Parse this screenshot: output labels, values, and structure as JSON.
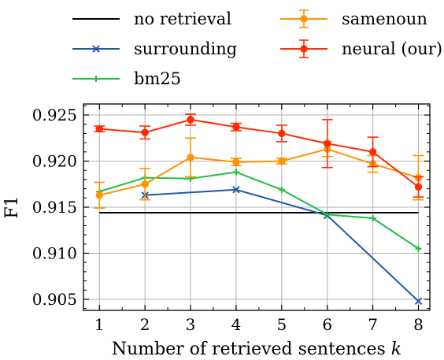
{
  "chart_data": {
    "type": "line",
    "xlabel": "Number of retrieved sentences",
    "xlabel_var": "k",
    "ylabel": "F1",
    "x": [
      1,
      2,
      3,
      4,
      5,
      6,
      7,
      8
    ],
    "x_ticks": [
      "1",
      "2",
      "3",
      "4",
      "5",
      "6",
      "7",
      "8"
    ],
    "y_ticks": [
      "0.905",
      "0.910",
      "0.915",
      "0.920",
      "0.925"
    ],
    "xlim": [
      0.65,
      8.25
    ],
    "ylim": [
      0.9038,
      0.9262
    ],
    "grid": true,
    "legend_position": "top (above plot, two columns)",
    "series": [
      {
        "name": "no retrieval",
        "color": "#000000",
        "marker": "none",
        "x": [
          1,
          8
        ],
        "values": [
          0.9144,
          0.9144
        ]
      },
      {
        "name": "surrounding",
        "color": "#1f5aa6",
        "marker": "x",
        "x": [
          2,
          4,
          6,
          8
        ],
        "values": [
          0.9163,
          0.9169,
          0.9141,
          0.9048
        ]
      },
      {
        "name": "bm25",
        "color": "#1fbf3c",
        "marker": "plus",
        "x": [
          1,
          2,
          3,
          4,
          5,
          6,
          7,
          8
        ],
        "values": [
          0.9167,
          0.9182,
          0.9181,
          0.9188,
          0.9169,
          0.9142,
          0.9138,
          0.9105
        ]
      },
      {
        "name": "samenoun",
        "color": "#ff9500",
        "marker": "circle",
        "x": [
          1,
          2,
          3,
          4,
          5,
          6,
          7,
          8
        ],
        "values": [
          0.9163,
          0.9175,
          0.9204,
          0.9199,
          0.92,
          0.9213,
          0.9197,
          0.9182
        ],
        "errors": [
          0.0014,
          0.0017,
          0.0021,
          0.0004,
          0.0003,
          0.0008,
          0.0009,
          0.0024
        ]
      },
      {
        "name": "neural (our)",
        "color": "#ff2c00",
        "marker": "circle",
        "x": [
          1,
          2,
          3,
          4,
          5,
          6,
          7,
          8
        ],
        "values": [
          0.9235,
          0.9231,
          0.9245,
          0.9237,
          0.923,
          0.9219,
          0.921,
          0.9172
        ],
        "errors": [
          0.0003,
          0.0007,
          0.0006,
          0.0004,
          0.0009,
          0.0026,
          0.0016,
          0.0011
        ]
      }
    ]
  }
}
